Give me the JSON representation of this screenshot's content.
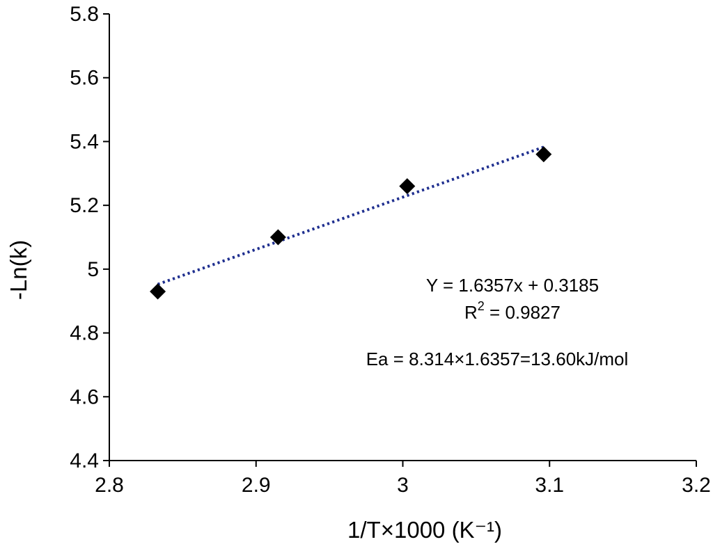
{
  "chart_data": {
    "type": "scatter",
    "title": "",
    "xlabel": "1/T×1000 (K⁻¹)",
    "ylabel": "-Ln(k)",
    "xlim": [
      2.8,
      3.2
    ],
    "ylim": [
      4.4,
      5.8
    ],
    "x_ticks": [
      "2.8",
      "2.9",
      "3",
      "3.1",
      "3.2"
    ],
    "y_ticks": [
      "4.4",
      "4.6",
      "4.8",
      "5",
      "5.2",
      "5.4",
      "5.6",
      "5.8"
    ],
    "grid": false,
    "legend": "none",
    "series": [
      {
        "marker": "diamond",
        "color": "#000000",
        "x": [
          2.833,
          2.915,
          3.003,
          3.096
        ],
        "y": [
          4.93,
          5.1,
          5.26,
          5.36
        ]
      }
    ],
    "trendline": {
      "style": "dotted",
      "color": "#1f2f8f",
      "slope": 1.6357,
      "intercept": 0.3185,
      "x_range": [
        2.833,
        3.096
      ]
    },
    "annotations": {
      "equation": "Y = 1.6357x + 0.3185",
      "r2_label": "R",
      "r2_sup": "2",
      "r2_value": " = 0.9827",
      "ea": "Ea = 8.314×1.6357=13.60kJ/mol"
    }
  }
}
